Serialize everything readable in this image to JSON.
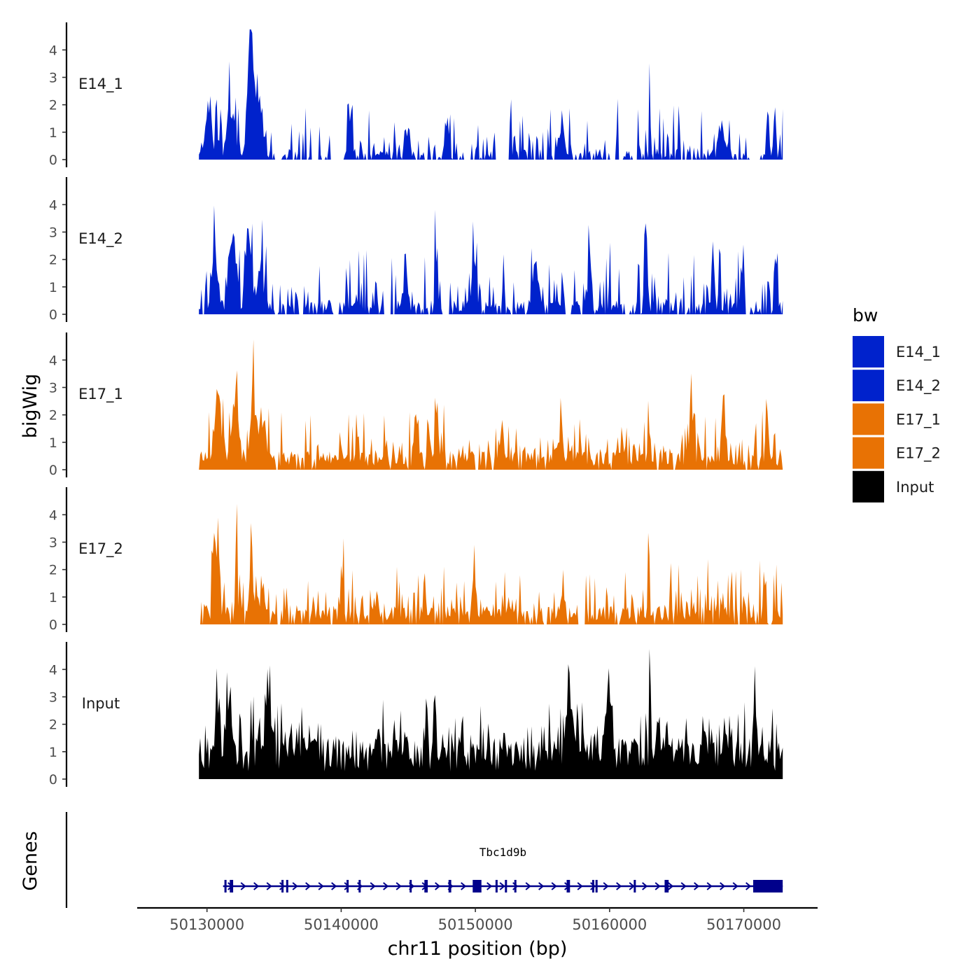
{
  "chart_data": {
    "type": "area",
    "chromosome": "chr11",
    "ylabel": "bigWig",
    "genes_label": "Genes",
    "xlabel": "chr11 position (bp)",
    "xlim": [
      50124800,
      50175500
    ],
    "x_ticks": [
      50130000,
      50140000,
      50150000,
      50160000,
      50170000
    ],
    "x_tick_labels": [
      "50130000",
      "50140000",
      "50150000",
      "50160000",
      "50170000"
    ],
    "ylim": [
      0,
      4.8
    ],
    "y_ticks": [
      0,
      1,
      2,
      3,
      4
    ],
    "y_tick_labels": [
      "0",
      "1",
      "2",
      "3",
      "4"
    ],
    "data_range": [
      50129400,
      50172900
    ],
    "legend": {
      "title": "bw",
      "items": [
        {
          "label": "E14_1",
          "color": "#0022cc"
        },
        {
          "label": "E14_2",
          "color": "#0022cc"
        },
        {
          "label": "E17_1",
          "color": "#e87204"
        },
        {
          "label": "E17_2",
          "color": "#e87204"
        },
        {
          "label": "Input",
          "color": "#000000"
        }
      ]
    },
    "tracks": [
      {
        "name": "E14_1",
        "color": "#0022cc",
        "seed": 11,
        "base": 0.25,
        "noise": 0.95,
        "dropout": 0.35,
        "peaks": [
          [
            50130100,
            1.9,
            350
          ],
          [
            50131800,
            1.7,
            400
          ],
          [
            50133200,
            3.9,
            250
          ],
          [
            50133700,
            2.5,
            500
          ],
          [
            50140700,
            1.6,
            200
          ],
          [
            50145000,
            1.3,
            200
          ],
          [
            50147900,
            1.6,
            180
          ],
          [
            50152500,
            1.2,
            200
          ],
          [
            50156500,
            1.2,
            250
          ],
          [
            50163000,
            4.5,
            60
          ],
          [
            50168300,
            1.3,
            250
          ],
          [
            50171800,
            1.9,
            150
          ],
          [
            50172300,
            2.2,
            120
          ]
        ],
        "gaps": [
          [
            50135000,
            50135600
          ],
          [
            50137800,
            50138100
          ],
          [
            50139200,
            50140100
          ],
          [
            50146200,
            50146500
          ],
          [
            50149200,
            50149700
          ],
          [
            50151500,
            50152500
          ],
          [
            50160700,
            50161000
          ],
          [
            50166000,
            50166200
          ],
          [
            50170500,
            50171200
          ]
        ]
      },
      {
        "name": "E14_2",
        "color": "#0022cc",
        "seed": 23,
        "base": 0.3,
        "noise": 1.1,
        "dropout": 0.25,
        "peaks": [
          [
            50130600,
            2.1,
            300
          ],
          [
            50131900,
            3.2,
            350
          ],
          [
            50133100,
            3.4,
            300
          ],
          [
            50134000,
            1.8,
            300
          ],
          [
            50144800,
            1.9,
            200
          ],
          [
            50147100,
            2.2,
            150
          ],
          [
            50149900,
            2.2,
            200
          ],
          [
            50154500,
            2.0,
            300
          ],
          [
            50158500,
            2.8,
            150
          ],
          [
            50162700,
            2.9,
            150
          ],
          [
            50167700,
            2.8,
            150
          ],
          [
            50172300,
            2.3,
            100
          ]
        ],
        "gaps": [
          [
            50135000,
            50135300
          ],
          [
            50136800,
            50137100
          ],
          [
            50139400,
            50139800
          ],
          [
            50143300,
            50143700
          ],
          [
            50147500,
            50148100
          ],
          [
            50170200,
            50170500
          ]
        ]
      },
      {
        "name": "E17_1",
        "color": "#e87204",
        "seed": 37,
        "base": 0.4,
        "noise": 0.9,
        "dropout": 0.1,
        "peaks": [
          [
            50130800,
            2.6,
            350
          ],
          [
            50132200,
            2.5,
            300
          ],
          [
            50133400,
            2.8,
            300
          ],
          [
            50134200,
            1.8,
            300
          ],
          [
            50145600,
            1.9,
            250
          ],
          [
            50147100,
            1.8,
            200
          ],
          [
            50156200,
            1.2,
            300
          ],
          [
            50162900,
            2.5,
            80
          ],
          [
            50166200,
            1.8,
            200
          ],
          [
            50168500,
            2.0,
            250
          ],
          [
            50171700,
            2.5,
            150
          ]
        ],
        "gaps": [
          [
            50135100,
            50135300
          ],
          [
            50164700,
            50164900
          ],
          [
            50170100,
            50170300
          ]
        ]
      },
      {
        "name": "E17_2",
        "color": "#e87204",
        "seed": 53,
        "base": 0.4,
        "noise": 0.95,
        "dropout": 0.15,
        "peaks": [
          [
            50130700,
            2.2,
            300
          ],
          [
            50132200,
            4.1,
            100
          ],
          [
            50133300,
            3.7,
            150
          ],
          [
            50134100,
            1.3,
            250
          ],
          [
            50140100,
            1.7,
            150
          ],
          [
            50149900,
            1.6,
            200
          ],
          [
            50158000,
            1.5,
            250
          ],
          [
            50162900,
            4.3,
            70
          ],
          [
            50171500,
            1.5,
            150
          ]
        ],
        "gaps": [
          [
            50135200,
            50135500
          ],
          [
            50157600,
            50158200
          ],
          [
            50171800,
            50172100
          ]
        ]
      },
      {
        "name": "Input",
        "color": "#000000",
        "seed": 71,
        "base": 0.9,
        "noise": 0.85,
        "dropout": 0.0,
        "peaks": [
          [
            50130800,
            2.3,
            250
          ],
          [
            50131600,
            2.6,
            200
          ],
          [
            50134500,
            2.3,
            300
          ],
          [
            50146900,
            2.8,
            100
          ],
          [
            50157000,
            2.8,
            300
          ],
          [
            50159900,
            2.6,
            250
          ],
          [
            50163000,
            4.4,
            70
          ],
          [
            50170800,
            2.2,
            150
          ]
        ],
        "gaps": []
      }
    ],
    "genes": [
      {
        "name": "Tbc1d9b",
        "strand": "+",
        "start": 50131200,
        "end": 50172900,
        "exons": [
          [
            50131300,
            50131400
          ],
          [
            50131700,
            50131950
          ],
          [
            50135550,
            50135700
          ],
          [
            50135900,
            50136000
          ],
          [
            50140400,
            50140500
          ],
          [
            50141300,
            50141400
          ],
          [
            50145100,
            50145250
          ],
          [
            50146200,
            50146450
          ],
          [
            50148000,
            50148200
          ],
          [
            50149800,
            50150450
          ],
          [
            50151500,
            50151600
          ],
          [
            50152200,
            50152350
          ],
          [
            50152900,
            50153050
          ],
          [
            50156800,
            50157050
          ],
          [
            50158700,
            50158800
          ],
          [
            50158950,
            50159050
          ],
          [
            50161800,
            50161950
          ],
          [
            50164100,
            50164400
          ],
          [
            50170700,
            50172900
          ]
        ]
      }
    ]
  }
}
